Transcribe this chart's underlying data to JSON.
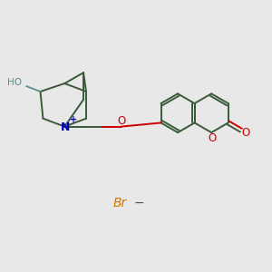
{
  "bg": "#e8e8e8",
  "bc": "#3a5a3a",
  "nc": "#0000bb",
  "oc": "#cc0000",
  "hc": "#5a8a8a",
  "brc": "#cc7700",
  "mc": "#555555",
  "lw": 1.4,
  "xlim": [
    0,
    10
  ],
  "ylim": [
    0,
    10
  ],
  "br_x": 4.4,
  "br_y": 2.5
}
